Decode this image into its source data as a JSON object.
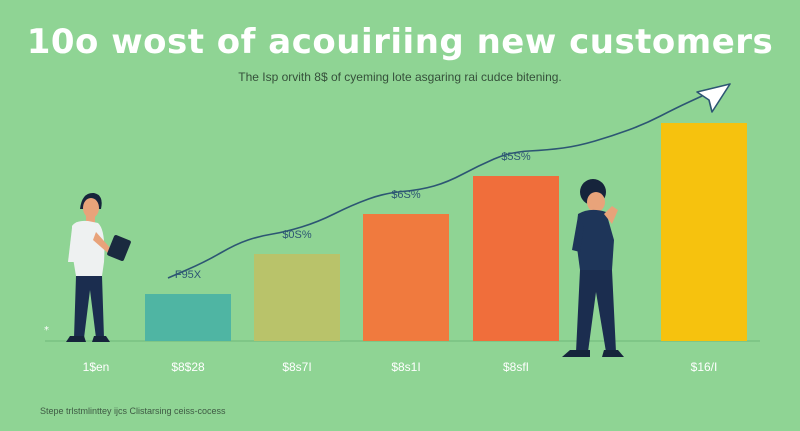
{
  "title": "10o wost of acouiriing new customers",
  "subtitle": "The Isp orvith 8$ of cyeming lote asgaring rai cudce bitening.",
  "footer": "Stepe trlstmlinttey ijcs Clistarsing ceiss-cocess",
  "colors": {
    "background": "#8fd494",
    "bars": [
      "#4fb5a3",
      "#b9c36a",
      "#f07a3e",
      "#f06e3b",
      "#f6c20e"
    ],
    "trend_line": "#2d5673",
    "arrow": "#ffffff"
  },
  "icons": [
    "person-with-tablet-illustration",
    "person-thinking-illustration",
    "arrow-head-icon"
  ],
  "chart_data": {
    "type": "bar",
    "categories": [
      "1$en",
      "$8$28",
      "$8s7I",
      "$8s1I",
      "$8sfI",
      "$16/I"
    ],
    "values": [
      0,
      47,
      87,
      127,
      165,
      218
    ],
    "data_labels": [
      "",
      "F95X",
      "$0S%",
      "$6S%",
      "$5S%",
      ""
    ],
    "ylim": [
      0,
      240
    ],
    "trend_line": true,
    "grid": false,
    "legend": "none"
  }
}
